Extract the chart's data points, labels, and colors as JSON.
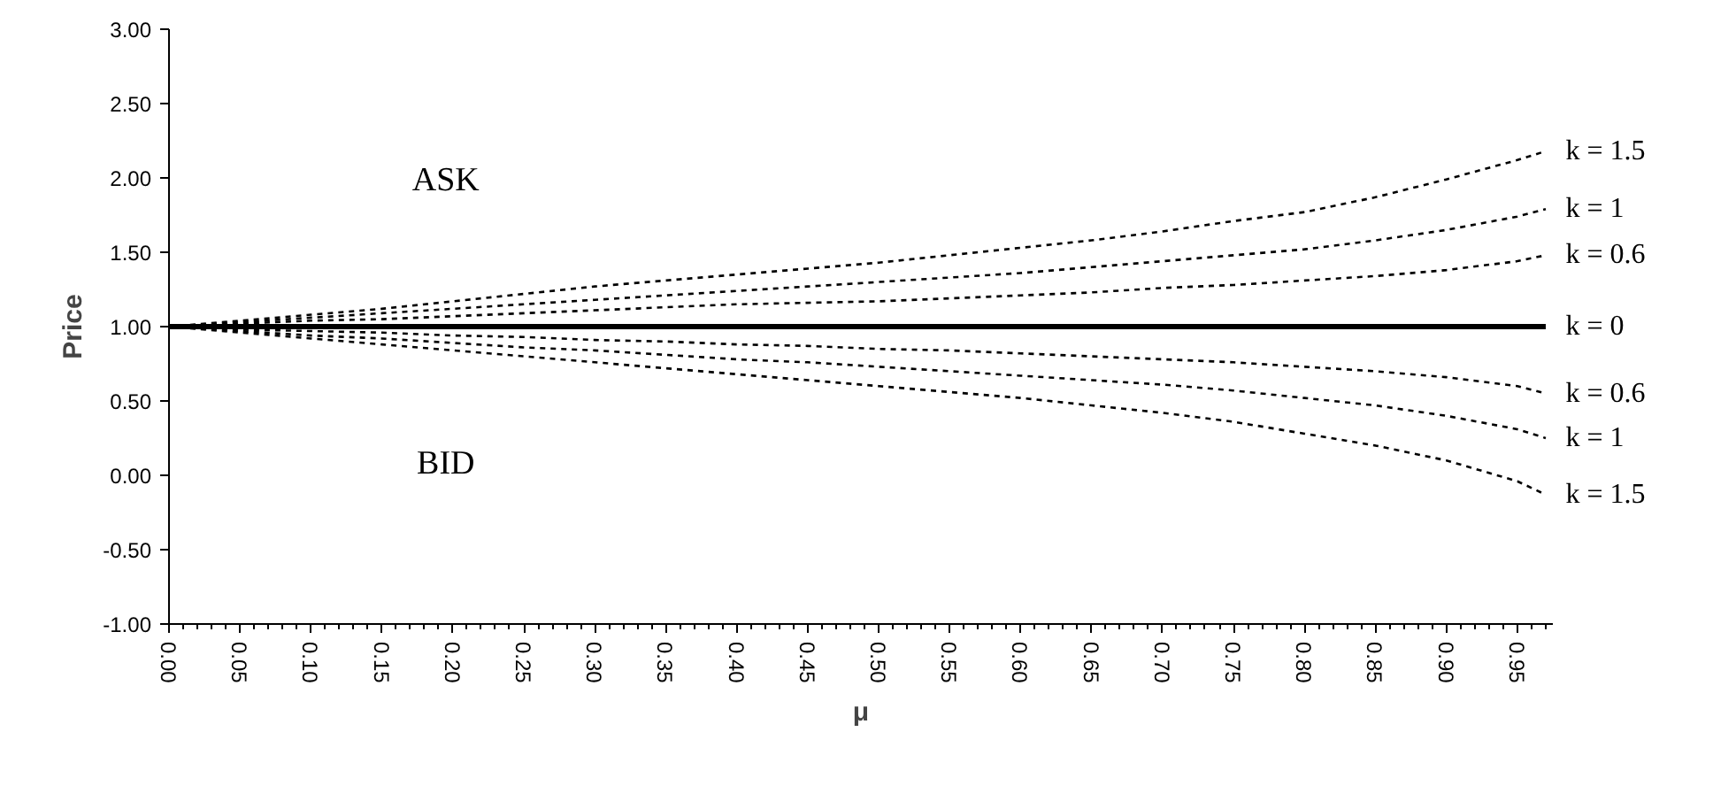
{
  "chart_data": {
    "type": "line",
    "xlabel": "μ",
    "ylabel": "Price",
    "x": [
      0,
      0.05,
      0.1,
      0.15,
      0.2,
      0.25,
      0.3,
      0.35,
      0.4,
      0.45,
      0.5,
      0.55,
      0.6,
      0.65,
      0.7,
      0.75,
      0.8,
      0.85,
      0.9,
      0.95,
      0.97
    ],
    "series": [
      {
        "name": "k = 1.5",
        "color": "#000000",
        "line_style": "dashed",
        "values": [
          1.0,
          1.04,
          1.08,
          1.12,
          1.17,
          1.22,
          1.27,
          1.31,
          1.35,
          1.39,
          1.43,
          1.48,
          1.53,
          1.58,
          1.64,
          1.71,
          1.77,
          1.87,
          1.99,
          2.12,
          2.18
        ]
      },
      {
        "name": "k = 1",
        "color": "#000000",
        "line_style": "dashed",
        "values": [
          1.0,
          1.03,
          1.06,
          1.09,
          1.12,
          1.15,
          1.18,
          1.21,
          1.24,
          1.27,
          1.3,
          1.33,
          1.36,
          1.4,
          1.44,
          1.48,
          1.52,
          1.58,
          1.65,
          1.74,
          1.79
        ]
      },
      {
        "name": "k = 0.6",
        "color": "#000000",
        "line_style": "dashed",
        "values": [
          1.0,
          1.02,
          1.04,
          1.05,
          1.07,
          1.09,
          1.11,
          1.13,
          1.15,
          1.16,
          1.17,
          1.19,
          1.21,
          1.23,
          1.26,
          1.28,
          1.31,
          1.34,
          1.38,
          1.44,
          1.48
        ]
      },
      {
        "name": "k = 0",
        "color": "#000000",
        "line_style": "solid",
        "values": [
          1.0,
          1.0,
          1.0,
          1.0,
          1.0,
          1.0,
          1.0,
          1.0,
          1.0,
          1.0,
          1.0,
          1.0,
          1.0,
          1.0,
          1.0,
          1.0,
          1.0,
          1.0,
          1.0,
          1.0,
          1.0
        ]
      },
      {
        "name": "k = 0.6",
        "color": "#000000",
        "line_style": "dashed",
        "values": [
          1.0,
          0.98,
          0.97,
          0.96,
          0.94,
          0.93,
          0.91,
          0.9,
          0.88,
          0.87,
          0.85,
          0.84,
          0.82,
          0.8,
          0.78,
          0.76,
          0.73,
          0.7,
          0.66,
          0.6,
          0.55
        ]
      },
      {
        "name": "k = 1",
        "color": "#000000",
        "line_style": "dashed",
        "values": [
          1.0,
          0.97,
          0.94,
          0.92,
          0.89,
          0.86,
          0.84,
          0.81,
          0.78,
          0.76,
          0.73,
          0.7,
          0.67,
          0.64,
          0.61,
          0.57,
          0.52,
          0.47,
          0.4,
          0.31,
          0.25
        ]
      },
      {
        "name": "k = 1.5",
        "color": "#000000",
        "line_style": "dashed",
        "values": [
          1.0,
          0.96,
          0.92,
          0.88,
          0.84,
          0.8,
          0.76,
          0.72,
          0.68,
          0.64,
          0.6,
          0.56,
          0.52,
          0.47,
          0.42,
          0.36,
          0.28,
          0.2,
          0.1,
          -0.04,
          -0.13
        ]
      }
    ],
    "xlim": [
      0,
      0.975
    ],
    "xticks": [
      {
        "value": 0,
        "label": "0.00"
      },
      {
        "value": 0.05,
        "label": "0.05"
      },
      {
        "value": 0.1,
        "label": "0.10"
      },
      {
        "value": 0.15,
        "label": "0.15"
      },
      {
        "value": 0.2,
        "label": "0.20"
      },
      {
        "value": 0.25,
        "label": "0.25"
      },
      {
        "value": 0.3,
        "label": "0.30"
      },
      {
        "value": 0.35,
        "label": "0.35"
      },
      {
        "value": 0.4,
        "label": "0.40"
      },
      {
        "value": 0.45,
        "label": "0.45"
      },
      {
        "value": 0.5,
        "label": "0.50"
      },
      {
        "value": 0.55,
        "label": "0.55"
      },
      {
        "value": 0.6,
        "label": "0.60"
      },
      {
        "value": 0.65,
        "label": "0.65"
      },
      {
        "value": 0.7,
        "label": "0.70"
      },
      {
        "value": 0.75,
        "label": "0.75"
      },
      {
        "value": 0.8,
        "label": "0.80"
      },
      {
        "value": 0.85,
        "label": "0.85"
      },
      {
        "value": 0.9,
        "label": "0.90"
      },
      {
        "value": 0.95,
        "label": "0.95"
      }
    ],
    "ylim": [
      -1,
      3
    ],
    "yticks": [
      {
        "value": -1,
        "label": "-1.00"
      },
      {
        "value": -0.5,
        "label": "-0.50"
      },
      {
        "value": 0,
        "label": "0.00"
      },
      {
        "value": 0.5,
        "label": "0.50"
      },
      {
        "value": 1,
        "label": "1.00"
      },
      {
        "value": 1.5,
        "label": "1.50"
      },
      {
        "value": 2,
        "label": "2.00"
      },
      {
        "value": 2.5,
        "label": "2.50"
      },
      {
        "value": 3,
        "label": "3.00"
      }
    ],
    "annotations": [
      "ASK",
      "BID"
    ],
    "grid": false,
    "legend": false,
    "marker": "none"
  }
}
